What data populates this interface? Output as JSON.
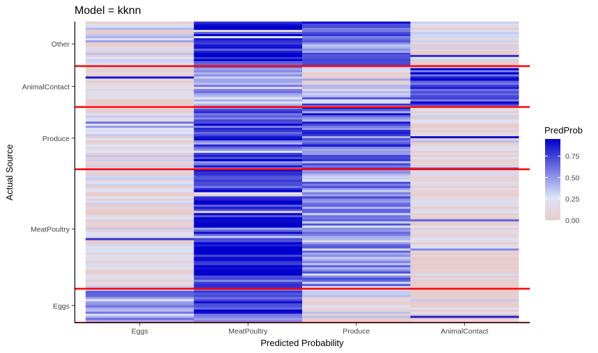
{
  "chart_data": {
    "type": "heatmap",
    "title": "Model =  kknn",
    "xlabel": "Predicted Probability",
    "ylabel": "Actual Source",
    "x_categories": [
      "Eggs",
      "MeatPoultry",
      "Produce",
      "AnimalContact"
    ],
    "y_groups": [
      {
        "name": "Eggs",
        "span": [
          0,
          0.112
        ],
        "mean_probs": [
          0.55,
          0.7,
          0.18,
          0.02
        ]
      },
      {
        "name": "MeatPoultry",
        "span": [
          0.112,
          0.509
        ],
        "mean_probs": [
          0.12,
          0.85,
          0.5,
          0.05
        ]
      },
      {
        "name": "Produce",
        "span": [
          0.509,
          0.716
        ],
        "mean_probs": [
          0.15,
          0.75,
          0.65,
          0.08
        ]
      },
      {
        "name": "AnimalContact",
        "span": [
          0.716,
          0.852
        ],
        "mean_probs": [
          0.06,
          0.45,
          0.22,
          0.8
        ]
      },
      {
        "name": "Other",
        "span": [
          0.852,
          1
        ],
        "mean_probs": [
          0.18,
          0.88,
          0.55,
          0.12
        ]
      }
    ],
    "y_tick_labels": [
      "Other",
      "AnimalContact",
      "Produce",
      "MeatPoultry",
      "Eggs"
    ],
    "legend": {
      "title": "PredProb",
      "ticks": [
        "0.75",
        "0.50",
        "0.25",
        "0.00"
      ],
      "tick_values": [
        0.75,
        0.5,
        0.25,
        0
      ],
      "range": [
        0,
        0.95
      ],
      "placement": "right"
    },
    "colors": {
      "low": "#e8cccc",
      "mid": "#dde4f6",
      "high": "#0000cc",
      "separator": "#ff0000"
    }
  }
}
